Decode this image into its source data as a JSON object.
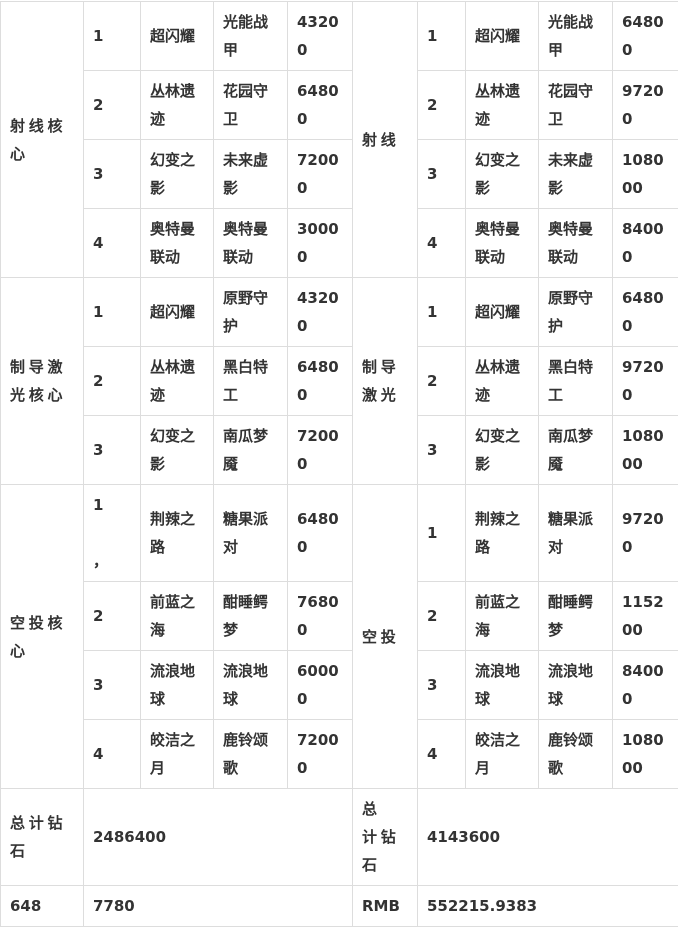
{
  "sections": [
    {
      "left_label": "射线核心",
      "right_label": "射线",
      "rows": [
        {
          "left": [
            "1",
            "超闪耀",
            "光能战甲",
            "43200"
          ],
          "right": [
            "1",
            "超闪耀",
            "光能战甲",
            "64800"
          ]
        },
        {
          "left": [
            "2",
            "丛林遗迹",
            "花园守卫",
            "64800"
          ],
          "right": [
            "2",
            "丛林遗迹",
            "花园守卫",
            "97200"
          ]
        },
        {
          "left": [
            "3",
            "幻变之影",
            "未来虚影",
            "72000"
          ],
          "right": [
            "3",
            "幻变之影",
            "未来虚影",
            "108000"
          ]
        },
        {
          "left": [
            "4",
            "奥特曼联动",
            "奥特曼联动",
            "30000"
          ],
          "right": [
            "4",
            "奥特曼联动",
            "奥特曼联动",
            "84000"
          ]
        }
      ]
    },
    {
      "left_label": "制导激光核心",
      "right_label": "制导激光",
      "rows": [
        {
          "left": [
            "1",
            "超闪耀",
            "原野守护",
            "43200"
          ],
          "right": [
            "1",
            "超闪耀",
            "原野守护",
            "64800"
          ]
        },
        {
          "left": [
            "2",
            "丛林遗迹",
            "黑白特工",
            "64800"
          ],
          "right": [
            "2",
            "丛林遗迹",
            "黑白特工",
            "97200"
          ]
        },
        {
          "left": [
            "3",
            "幻变之影",
            "南瓜梦魇",
            "72000"
          ],
          "right": [
            "3",
            "幻变之影",
            "南瓜梦魇",
            "108000"
          ]
        }
      ]
    },
    {
      "left_label": "空投核心",
      "right_label": "空投",
      "rows": [
        {
          "left": [
            "1\n\n，",
            "荆辣之路",
            "糖果派对",
            "64800"
          ],
          "right": [
            "1",
            "荆辣之路",
            "糖果派对",
            "97200"
          ]
        },
        {
          "left": [
            "2",
            "前蓝之海",
            "酣睡鳄梦",
            "76800"
          ],
          "right": [
            "2",
            "前蓝之海",
            "酣睡鳄梦",
            "115200"
          ]
        },
        {
          "left": [
            "3",
            "流浪地球",
            "流浪地球",
            "60000"
          ],
          "right": [
            "3",
            "流浪地球",
            "流浪地球",
            "84000"
          ]
        },
        {
          "left": [
            "4",
            "皎洁之月",
            "鹿铃颂歌",
            "72000"
          ],
          "right": [
            "4",
            "皎洁之月",
            "鹿铃颂歌",
            "108000"
          ]
        }
      ]
    }
  ],
  "totals": {
    "left_label": "总计钻石",
    "left_value": "2486400",
    "right_label": "总 计钻石",
    "right_value": "4143600"
  },
  "footer": {
    "left_label": "648",
    "left_value": "7780",
    "right_label": "RMB",
    "right_value": "552215.9383"
  }
}
